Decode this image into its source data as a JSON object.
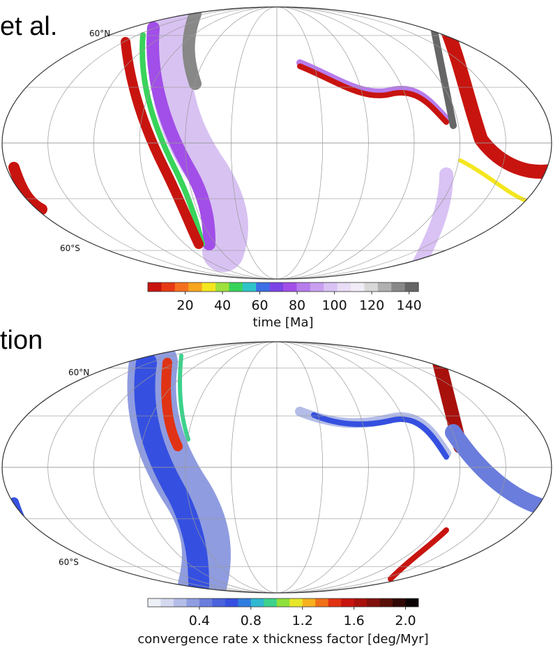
{
  "header_text": "et al.",
  "side_text": "tion",
  "maps": [
    {
      "lat_labels": [
        "60°N",
        "60°S"
      ],
      "colorbar": {
        "label": "time [Ma]",
        "clim": [
          0,
          145
        ],
        "ticks": [
          20,
          40,
          60,
          80,
          100,
          120,
          140
        ],
        "colors": [
          "#c8140f",
          "#e63a14",
          "#f5701e",
          "#f7a51e",
          "#f4e61e",
          "#9fe03c",
          "#38d45a",
          "#2fc4c8",
          "#3c6ee6",
          "#7a44e6",
          "#a24ee8",
          "#b77cec",
          "#c9a0f0",
          "#d9c2f4",
          "#e8dcf6",
          "#f1ecf5",
          "#d8d8d8",
          "#b0b0b0",
          "#888888",
          "#666666"
        ]
      }
    },
    {
      "lat_labels": [
        "60°N",
        "60°S"
      ],
      "colorbar": {
        "label": "convergence rate x thickness factor [deg/Myr]",
        "clim": [
          0,
          2.1
        ],
        "ticks": [
          0.4,
          0.8,
          1.2,
          1.6,
          {
            "value": 2,
            "label": "2.0"
          }
        ],
        "colors": [
          "#eef0f8",
          "#d4d9f0",
          "#b4bde8",
          "#8f9ce0",
          "#6a7ddc",
          "#4a62dc",
          "#3550e0",
          "#2f7ce0",
          "#2fb8d0",
          "#3cd28c",
          "#8ee03c",
          "#e8e628",
          "#f7b01e",
          "#f07018",
          "#e03214",
          "#c8140f",
          "#a8100c",
          "#80100c",
          "#581008",
          "#300806",
          "#0c0404"
        ]
      }
    }
  ]
}
